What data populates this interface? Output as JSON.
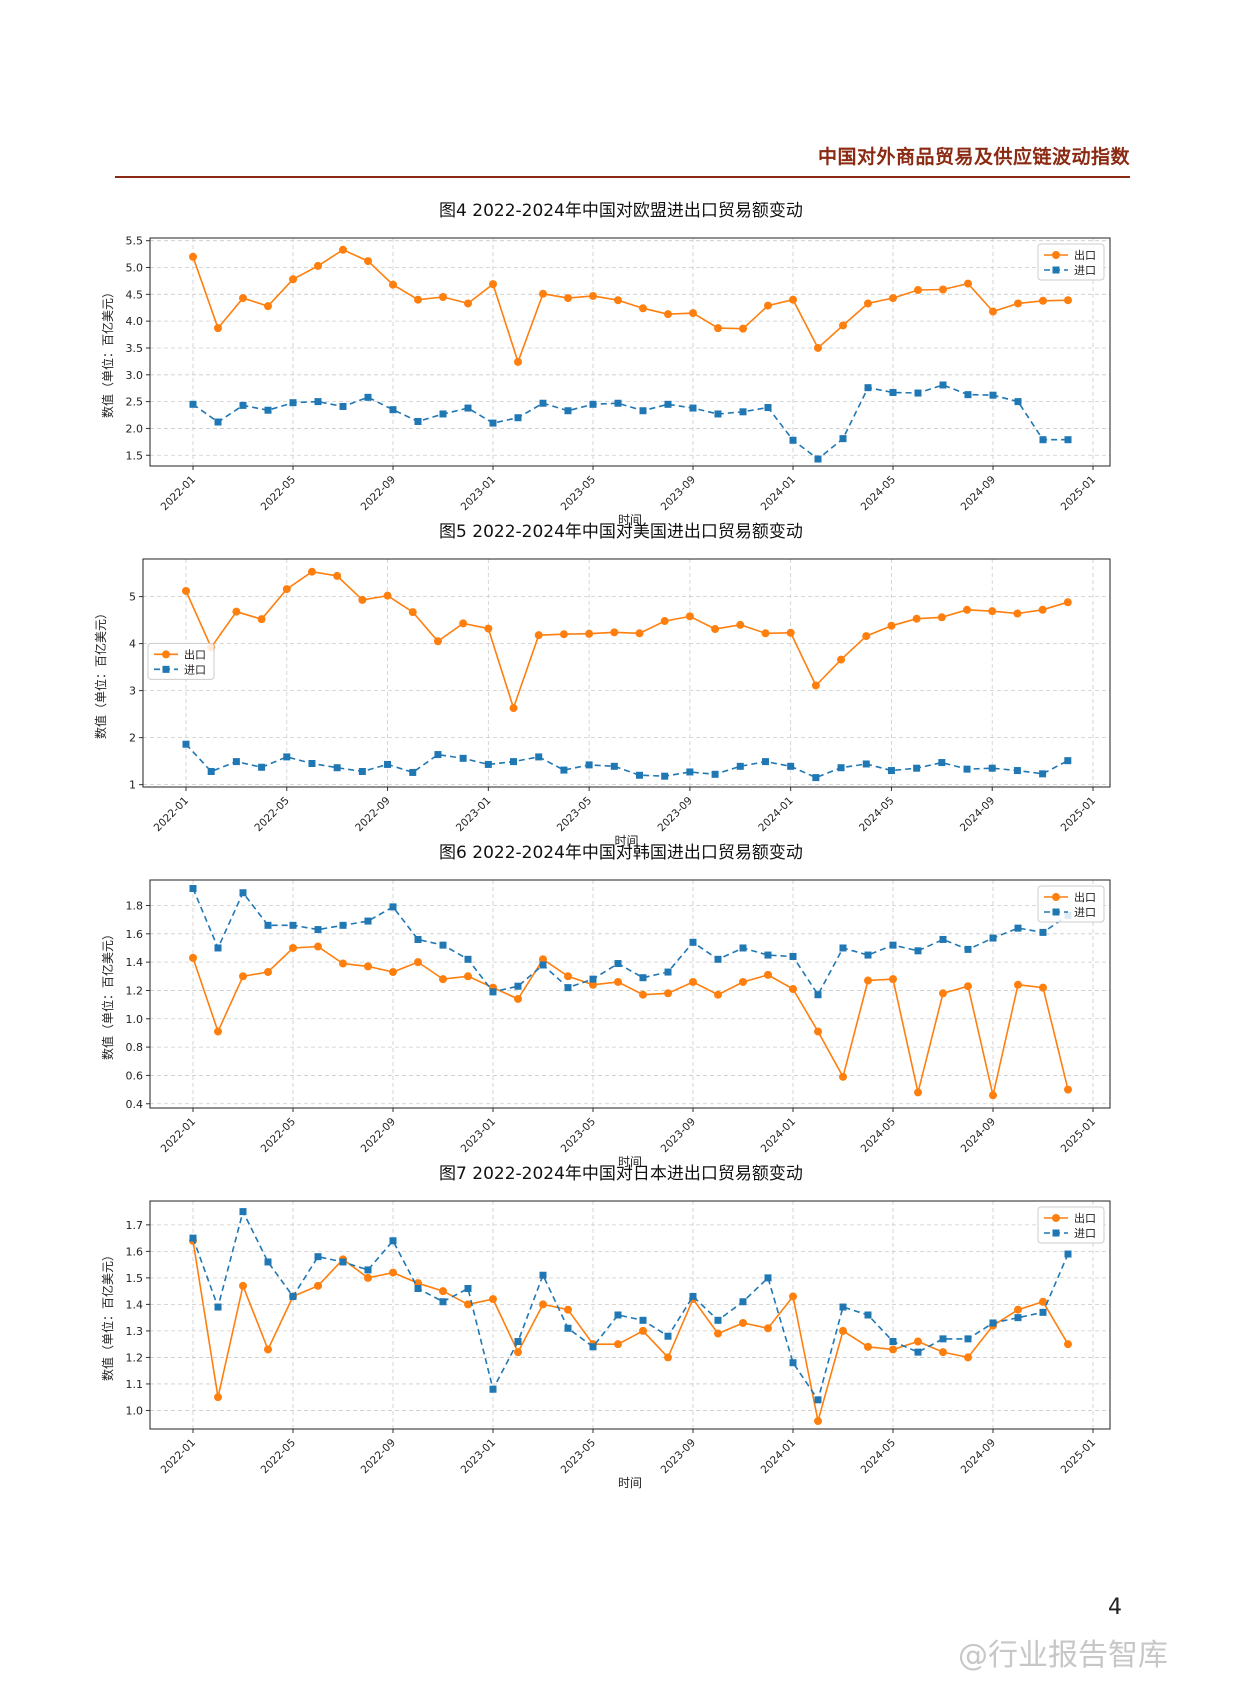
{
  "header": {
    "title": "中国对外商品贸易及供应链波动指数"
  },
  "page_number": "4",
  "watermark": "@行业报告智库",
  "colors": {
    "export": "#ff7f0e",
    "import": "#1f77b4",
    "header_rule": "#8a2a12"
  },
  "chart_data": [
    {
      "type": "line",
      "title": "图4   2022-2024年中国对欧盟进出口贸易额变动",
      "xlabel": "时间",
      "ylabel": "数值（单位：百亿美元）",
      "x_ticks": [
        "2022-01",
        "2022-05",
        "2022-09",
        "2023-01",
        "2023-05",
        "2023-09",
        "2024-01",
        "2024-05",
        "2024-09",
        "2025-01"
      ],
      "y_ticks": [
        "1.5",
        "2.0",
        "2.5",
        "3.0",
        "3.5",
        "4.0",
        "4.5",
        "5.0",
        "5.5"
      ],
      "ylim": [
        1.3,
        5.55
      ],
      "legend": "top-right",
      "grid": true,
      "series": [
        {
          "name": "出口",
          "style": "solid-circle",
          "color": "#ff7f0e",
          "values": [
            5.2,
            3.87,
            4.43,
            4.28,
            4.78,
            5.03,
            5.33,
            5.12,
            4.68,
            4.4,
            4.45,
            4.33,
            4.69,
            3.24,
            4.51,
            4.43,
            4.47,
            4.39,
            4.24,
            4.13,
            4.15,
            3.87,
            3.86,
            4.29,
            4.4,
            3.5,
            3.92,
            4.33,
            4.43,
            4.58,
            4.59,
            4.7,
            4.18,
            4.33,
            4.38,
            4.39
          ]
        },
        {
          "name": "进口",
          "style": "dashed-square",
          "color": "#1f77b4",
          "values": [
            2.45,
            2.12,
            2.43,
            2.34,
            2.48,
            2.5,
            2.41,
            2.58,
            2.35,
            2.13,
            2.27,
            2.38,
            2.1,
            2.2,
            2.47,
            2.33,
            2.45,
            2.47,
            2.33,
            2.45,
            2.38,
            2.27,
            2.31,
            2.39,
            1.78,
            1.43,
            1.81,
            2.76,
            2.67,
            2.66,
            2.81,
            2.63,
            2.62,
            2.5,
            1.79,
            1.79
          ]
        }
      ]
    },
    {
      "type": "line",
      "title": "图5   2022-2024年中国对美国进出口贸易额变动",
      "xlabel": "时间",
      "ylabel": "数值（单位：百亿美元）",
      "x_ticks": [
        "2022-01",
        "2022-05",
        "2022-09",
        "2023-01",
        "2023-05",
        "2023-09",
        "2024-01",
        "2024-05",
        "2024-09",
        "2025-01"
      ],
      "y_ticks": [
        "1",
        "2",
        "3",
        "4",
        "5"
      ],
      "ylim": [
        0.95,
        5.8
      ],
      "legend": "center-left",
      "grid": true,
      "series": [
        {
          "name": "出口",
          "style": "solid-circle",
          "color": "#ff7f0e",
          "values": [
            5.12,
            3.92,
            4.68,
            4.52,
            5.16,
            5.53,
            5.44,
            4.93,
            5.02,
            4.67,
            4.05,
            4.43,
            4.32,
            2.63,
            4.18,
            4.2,
            4.21,
            4.24,
            4.22,
            4.48,
            4.58,
            4.31,
            4.4,
            4.22,
            4.23,
            3.11,
            3.66,
            4.16,
            4.38,
            4.53,
            4.56,
            4.72,
            4.69,
            4.64,
            4.72,
            4.88
          ]
        },
        {
          "name": "进口",
          "style": "dashed-square",
          "color": "#1f77b4",
          "values": [
            1.86,
            1.28,
            1.49,
            1.37,
            1.59,
            1.45,
            1.36,
            1.28,
            1.43,
            1.26,
            1.64,
            1.56,
            1.43,
            1.49,
            1.59,
            1.31,
            1.42,
            1.39,
            1.2,
            1.18,
            1.27,
            1.22,
            1.39,
            1.49,
            1.39,
            1.15,
            1.36,
            1.44,
            1.3,
            1.35,
            1.47,
            1.33,
            1.35,
            1.3,
            1.23,
            1.51
          ]
        }
      ]
    },
    {
      "type": "line",
      "title": "图6   2022-2024年中国对韩国进出口贸易额变动",
      "xlabel": "时间",
      "ylabel": "数值（单位：百亿美元）",
      "x_ticks": [
        "2022-01",
        "2022-05",
        "2022-09",
        "2023-01",
        "2023-05",
        "2023-09",
        "2024-01",
        "2024-05",
        "2024-09",
        "2025-01"
      ],
      "y_ticks": [
        "0.4",
        "0.6",
        "0.8",
        "1.0",
        "1.2",
        "1.4",
        "1.6",
        "1.8"
      ],
      "ylim": [
        0.37,
        1.98
      ],
      "legend": "top-right",
      "grid": true,
      "series": [
        {
          "name": "出口",
          "style": "solid-circle",
          "color": "#ff7f0e",
          "values": [
            1.43,
            0.91,
            1.3,
            1.33,
            1.5,
            1.51,
            1.39,
            1.37,
            1.33,
            1.4,
            1.28,
            1.3,
            1.22,
            1.14,
            1.42,
            1.3,
            1.24,
            1.26,
            1.17,
            1.18,
            1.26,
            1.17,
            1.26,
            1.31,
            1.21,
            0.91,
            0.59,
            1.27,
            1.28,
            0.48,
            1.18,
            1.23,
            0.46,
            1.24,
            1.22,
            0.5
          ]
        },
        {
          "name": "进口",
          "style": "dashed-square",
          "color": "#1f77b4",
          "values": [
            1.92,
            1.5,
            1.89,
            1.66,
            1.66,
            1.63,
            1.66,
            1.69,
            1.79,
            1.56,
            1.52,
            1.42,
            1.19,
            1.23,
            1.38,
            1.22,
            1.28,
            1.39,
            1.29,
            1.33,
            1.54,
            1.42,
            1.5,
            1.45,
            1.44,
            1.17,
            1.5,
            1.45,
            1.52,
            1.48,
            1.56,
            1.49,
            1.57,
            1.64,
            1.61,
            1.73
          ]
        }
      ]
    },
    {
      "type": "line",
      "title": "图7   2022-2024年中国对日本进出口贸易额变动",
      "xlabel": "时间",
      "ylabel": "数值（单位：百亿美元）",
      "x_ticks": [
        "2022-01",
        "2022-05",
        "2022-09",
        "2023-01",
        "2023-05",
        "2023-09",
        "2024-01",
        "2024-05",
        "2024-09",
        "2025-01"
      ],
      "y_ticks": [
        "1.0",
        "1.1",
        "1.2",
        "1.3",
        "1.4",
        "1.5",
        "1.6",
        "1.7"
      ],
      "ylim": [
        0.93,
        1.79
      ],
      "legend": "top-right",
      "grid": true,
      "series": [
        {
          "name": "出口",
          "style": "solid-circle",
          "color": "#ff7f0e",
          "values": [
            1.64,
            1.05,
            1.47,
            1.23,
            1.43,
            1.47,
            1.57,
            1.5,
            1.52,
            1.48,
            1.45,
            1.4,
            1.42,
            1.22,
            1.4,
            1.38,
            1.25,
            1.25,
            1.3,
            1.2,
            1.42,
            1.29,
            1.33,
            1.31,
            1.43,
            0.96,
            1.3,
            1.24,
            1.23,
            1.26,
            1.22,
            1.2,
            1.32,
            1.38,
            1.41,
            1.25
          ]
        },
        {
          "name": "进口",
          "style": "dashed-square",
          "color": "#1f77b4",
          "values": [
            1.65,
            1.39,
            1.75,
            1.56,
            1.43,
            1.58,
            1.56,
            1.53,
            1.64,
            1.46,
            1.41,
            1.46,
            1.08,
            1.26,
            1.51,
            1.31,
            1.24,
            1.36,
            1.34,
            1.28,
            1.43,
            1.34,
            1.41,
            1.5,
            1.18,
            1.04,
            1.39,
            1.36,
            1.26,
            1.22,
            1.27,
            1.27,
            1.33,
            1.35,
            1.37,
            1.59
          ]
        }
      ]
    }
  ]
}
